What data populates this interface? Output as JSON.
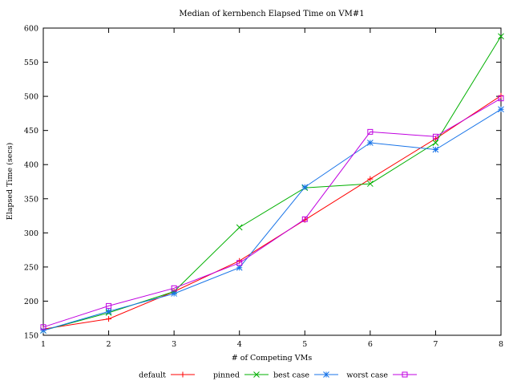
{
  "chart_data": {
    "type": "line",
    "title": "Median of kernbench Elapsed Time on VM#1",
    "xlabel": "# of Competing VMs",
    "ylabel": "Elapsed Time (secs)",
    "xlim": [
      1,
      8
    ],
    "ylim": [
      150,
      600
    ],
    "x": [
      1,
      2,
      3,
      4,
      5,
      6,
      7,
      8
    ],
    "xticks": [
      "1",
      "2",
      "3",
      "4",
      "5",
      "6",
      "7",
      "8"
    ],
    "yticks": [
      "150",
      "200",
      "250",
      "300",
      "350",
      "400",
      "450",
      "500",
      "550",
      "600"
    ],
    "yticks_values": [
      150,
      200,
      250,
      300,
      350,
      400,
      450,
      500,
      550,
      600
    ],
    "grid": false,
    "legend_position": "bottom",
    "series": [
      {
        "name": "default",
        "color": "#ff0000",
        "marker": "plus",
        "values": [
          159,
          174,
          214,
          259,
          319,
          379,
          438,
          501
        ]
      },
      {
        "name": "pinned",
        "color": "#00b000",
        "marker": "cross",
        "values": [
          157,
          183,
          214,
          308,
          366,
          372,
          432,
          588
        ]
      },
      {
        "name": "best case",
        "color": "#1874e8",
        "marker": "star",
        "values": [
          157,
          185,
          211,
          249,
          367,
          432,
          422,
          481
        ]
      },
      {
        "name": "worst case",
        "color": "#c000e0",
        "marker": "square",
        "values": [
          162,
          193,
          219,
          256,
          320,
          448,
          441,
          497
        ]
      }
    ]
  }
}
